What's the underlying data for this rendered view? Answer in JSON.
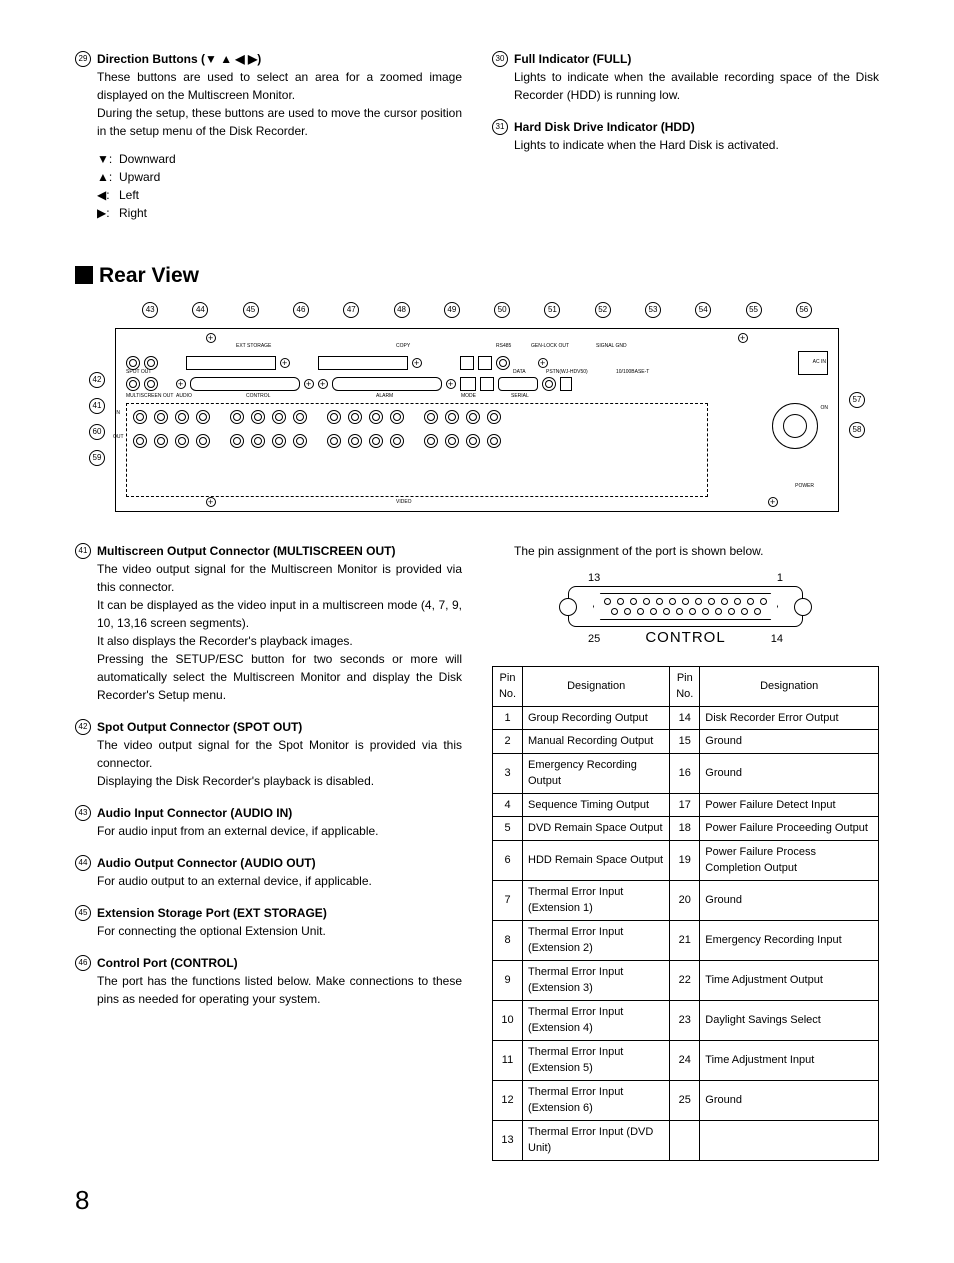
{
  "top_left": {
    "item29": {
      "num": "29",
      "title": "Direction Buttons (▼ ▲ ◀ ▶)",
      "p1": "These buttons are used to select an area for a zoomed image displayed on the Multiscreen Monitor.",
      "p2": "During the setup, these buttons are used to move the cursor position in the setup menu of the Disk Recorder.",
      "arrows": [
        {
          "sym": "▼:",
          "label": "Downward"
        },
        {
          "sym": "▲:",
          "label": "Upward"
        },
        {
          "sym": "◀:",
          "label": "Left"
        },
        {
          "sym": "▶:",
          "label": "Right"
        }
      ]
    }
  },
  "top_right": {
    "item30": {
      "num": "30",
      "title": "Full Indicator (FULL)",
      "p1": "Lights to indicate when the available recording space of the Disk Recorder (HDD) is running low."
    },
    "item31": {
      "num": "31",
      "title": "Hard Disk Drive Indicator (HDD)",
      "p1": "Lights to indicate when the Hard Disk is activated."
    }
  },
  "section_title": "Rear View",
  "diagram": {
    "top_nums": [
      "43",
      "44",
      "45",
      "46",
      "47",
      "48",
      "49",
      "50",
      "51",
      "52",
      "53",
      "54",
      "55",
      "56"
    ],
    "left_nums": [
      "42",
      "41",
      "60",
      "59"
    ],
    "right_nums": [
      "57",
      "58"
    ],
    "labels": {
      "ext_storage": "EXT STORAGE",
      "copy": "COPY",
      "rs485": "RS485",
      "genlock": "GEN-LOCK OUT",
      "signal_gnd": "SIGNAL GND",
      "spot_out": "SPOT OUT",
      "multiscreen": "MULTISCREEN OUT",
      "audio": "AUDIO",
      "control": "CONTROL",
      "alarm": "ALARM",
      "mode": "MODE",
      "data": "DATA",
      "serial": "SERIAL",
      "pstn": "PSTN(WJ-HDV50)",
      "ac_in": "AC IN",
      "power": "POWER",
      "video": "VIDEO",
      "tf": "10/100BASE-T",
      "out": "OUT",
      "in": "IN",
      "on": "ON"
    }
  },
  "bottom_left": [
    {
      "num": "41",
      "title": "Multiscreen Output Connector (MULTISCREEN OUT)",
      "body": [
        "The video output signal for the Multiscreen Monitor is provided via this connector.",
        "It can be displayed as the video input in a multiscreen mode (4, 7, 9, 10, 13,16 screen segments).",
        "It also displays the Recorder's playback images.",
        "Pressing the SETUP/ESC button for two seconds or more will automatically select the Multiscreen Monitor and display the Disk Recorder's Setup menu."
      ]
    },
    {
      "num": "42",
      "title": "Spot Output Connector (SPOT OUT)",
      "body": [
        "The video output signal for the Spot Monitor is provided via this connector.",
        "Displaying the Disk Recorder's playback is disabled."
      ]
    },
    {
      "num": "43",
      "title": "Audio Input Connector (AUDIO IN)",
      "body": [
        "For audio input from an external device, if applicable."
      ]
    },
    {
      "num": "44",
      "title": "Audio Output Connector (AUDIO OUT)",
      "body": [
        "For audio output to an external device, if applicable."
      ]
    },
    {
      "num": "45",
      "title": "Extension Storage Port (EXT STORAGE)",
      "body": [
        "For connecting the optional Extension Unit."
      ]
    },
    {
      "num": "46",
      "title": "Control Port (CONTROL)",
      "body": [
        "The port has the functions listed below. Make connections to these pins as needed for operating your system."
      ]
    }
  ],
  "bottom_right": {
    "intro": "The pin assignment of the port is shown below.",
    "port": {
      "tl": "13",
      "tr": "1",
      "bl": "25",
      "br": "14",
      "title": "CONTROL"
    },
    "table": {
      "headers": [
        "Pin No.",
        "Designation",
        "Pin No.",
        "Designation"
      ],
      "rows": [
        [
          "1",
          "Group Recording Output",
          "14",
          "Disk Recorder Error Output"
        ],
        [
          "2",
          "Manual Recording Output",
          "15",
          "Ground"
        ],
        [
          "3",
          "Emergency Recording Output",
          "16",
          "Ground"
        ],
        [
          "4",
          "Sequence Timing Output",
          "17",
          "Power Failure Detect Input"
        ],
        [
          "5",
          "DVD Remain Space Output",
          "18",
          "Power Failure Proceeding Output"
        ],
        [
          "6",
          "HDD Remain Space Output",
          "19",
          "Power Failure Process Completion Output"
        ],
        [
          "7",
          "Thermal Error Input (Extension 1)",
          "20",
          "Ground"
        ],
        [
          "8",
          "Thermal Error Input (Extension 2)",
          "21",
          "Emergency Recording Input"
        ],
        [
          "9",
          "Thermal Error Input (Extension 3)",
          "22",
          "Time Adjustment Output"
        ],
        [
          "10",
          "Thermal Error Input (Extension 4)",
          "23",
          "Daylight Savings Select"
        ],
        [
          "11",
          "Thermal Error Input (Extension 5)",
          "24",
          "Time Adjustment Input"
        ],
        [
          "12",
          "Thermal Error Input (Extension 6)",
          "25",
          "Ground"
        ],
        [
          "13",
          "Thermal Error Input (DVD Unit)",
          "",
          ""
        ]
      ]
    }
  },
  "page_number": "8"
}
